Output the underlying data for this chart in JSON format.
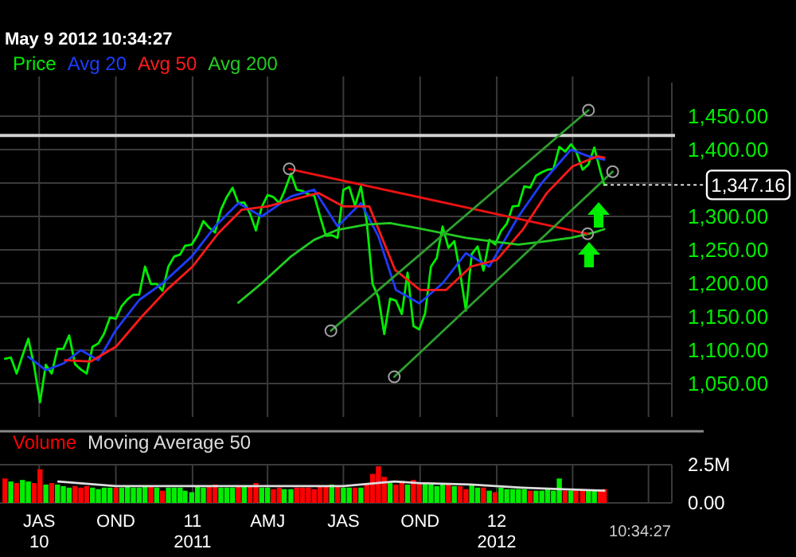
{
  "chart_data": [
    {
      "type": "line",
      "subtitle": "May 9 2012 10:34:27",
      "xlim": [
        "2010-05-15",
        "2012-07-29"
      ],
      "xticks": [
        {
          "value": "2010-07-01",
          "label": null
        },
        {
          "value": "2010-10-01",
          "label": null
        },
        {
          "value": "2011-01-01",
          "label": null
        },
        {
          "value": "2011-04-01",
          "label": null
        },
        {
          "value": "2011-07-01",
          "label": null
        },
        {
          "value": "2011-10-01",
          "label": null
        },
        {
          "value": "2012-01-01",
          "label": null
        },
        {
          "value": "2012-04-01",
          "label": null
        },
        {
          "value": "2012-07-01",
          "label": null
        }
      ],
      "ylim": [
        1000,
        1500
      ],
      "yticks": [
        {
          "value": 1050,
          "label": "1,050.00"
        },
        {
          "value": 1100,
          "label": "1,100.00"
        },
        {
          "value": 1150,
          "label": "1,150.00"
        },
        {
          "value": 1200,
          "label": "1,200.00"
        },
        {
          "value": 1250,
          "label": "1,250.00"
        },
        {
          "value": 1300,
          "label": "1,300.00"
        },
        {
          "value": 1350,
          "label": null
        },
        {
          "value": 1400,
          "label": "1,400.00"
        },
        {
          "value": 1450,
          "label": "1,450.00"
        }
      ],
      "grid": true,
      "legend": "top left",
      "tick_labels": "y",
      "ref_lines": [
        {
          "axis": "y",
          "value": 1421,
          "color": "#d0d0d0"
        }
      ],
      "annotations": [
        {
          "text": "1,347.16",
          "x": "2012-05-09",
          "y": 1347.16
        }
      ],
      "series": [
        {
          "name": "Price",
          "color": "#00ee00",
          "x": [
            "2010-05-21",
            "2010-05-28",
            "2010-06-04",
            "2010-06-11",
            "2010-06-18",
            "2010-06-25",
            "2010-07-02",
            "2010-07-09",
            "2010-07-16",
            "2010-07-23",
            "2010-07-30",
            "2010-08-06",
            "2010-08-13",
            "2010-08-20",
            "2010-08-27",
            "2010-09-03",
            "2010-09-10",
            "2010-09-17",
            "2010-09-24",
            "2010-10-01",
            "2010-10-08",
            "2010-10-15",
            "2010-10-22",
            "2010-10-29",
            "2010-11-05",
            "2010-11-12",
            "2010-11-19",
            "2010-11-26",
            "2010-12-03",
            "2010-12-10",
            "2010-12-17",
            "2010-12-23",
            "2010-12-31",
            "2011-01-07",
            "2011-01-14",
            "2011-01-21",
            "2011-01-28",
            "2011-02-04",
            "2011-02-11",
            "2011-02-18",
            "2011-02-25",
            "2011-03-04",
            "2011-03-11",
            "2011-03-18",
            "2011-03-25",
            "2011-04-01",
            "2011-04-08",
            "2011-04-15",
            "2011-04-21",
            "2011-04-29",
            "2011-05-06",
            "2011-05-13",
            "2011-05-20",
            "2011-05-27",
            "2011-06-03",
            "2011-06-10",
            "2011-06-17",
            "2011-06-24",
            "2011-07-01",
            "2011-07-08",
            "2011-07-15",
            "2011-07-22",
            "2011-07-29",
            "2011-08-05",
            "2011-08-12",
            "2011-08-19",
            "2011-08-26",
            "2011-09-02",
            "2011-09-09",
            "2011-09-16",
            "2011-09-23",
            "2011-09-30",
            "2011-10-07",
            "2011-10-14",
            "2011-10-21",
            "2011-10-28",
            "2011-11-04",
            "2011-11-11",
            "2011-11-18",
            "2011-11-25",
            "2011-12-02",
            "2011-12-09",
            "2011-12-16",
            "2011-12-23",
            "2011-12-30",
            "2012-01-06",
            "2012-01-13",
            "2012-01-20",
            "2012-01-27",
            "2012-02-03",
            "2012-02-10",
            "2012-02-17",
            "2012-02-24",
            "2012-03-02",
            "2012-03-09",
            "2012-03-16",
            "2012-03-23",
            "2012-03-30",
            "2012-04-05",
            "2012-04-13",
            "2012-04-20",
            "2012-04-27",
            "2012-05-04",
            "2012-05-09"
          ],
          "values": [
            1087,
            1089,
            1065,
            1092,
            1117,
            1076,
            1022,
            1078,
            1065,
            1102,
            1102,
            1122,
            1079,
            1071,
            1065,
            1105,
            1110,
            1125,
            1149,
            1147,
            1166,
            1176,
            1183,
            1183,
            1225,
            1199,
            1199,
            1189,
            1225,
            1240,
            1243,
            1256,
            1258,
            1272,
            1293,
            1283,
            1276,
            1310,
            1329,
            1343,
            1320,
            1321,
            1304,
            1279,
            1314,
            1332,
            1329,
            1320,
            1337,
            1364,
            1340,
            1338,
            1333,
            1331,
            1300,
            1271,
            1272,
            1268,
            1340,
            1344,
            1316,
            1345,
            1292,
            1199,
            1179,
            1124,
            1177,
            1174,
            1154,
            1216,
            1136,
            1131,
            1155,
            1225,
            1238,
            1285,
            1253,
            1263,
            1216,
            1159,
            1244,
            1255,
            1219,
            1265,
            1258,
            1278,
            1289,
            1315,
            1316,
            1345,
            1343,
            1361,
            1366,
            1370,
            1371,
            1404,
            1397,
            1408,
            1398,
            1370,
            1378,
            1403,
            1369,
            1347
          ]
        },
        {
          "name": "Avg 20",
          "color": "#1e3cff",
          "x": [
            "2010-06-18",
            "2010-07-09",
            "2010-07-30",
            "2010-08-20",
            "2010-09-10",
            "2010-10-01",
            "2010-10-29",
            "2010-11-26",
            "2010-12-31",
            "2011-01-28",
            "2011-02-25",
            "2011-03-25",
            "2011-04-29",
            "2011-05-27",
            "2011-06-24",
            "2011-07-22",
            "2011-08-12",
            "2011-09-02",
            "2011-09-30",
            "2011-10-28",
            "2011-11-25",
            "2011-12-23",
            "2012-01-27",
            "2012-02-24",
            "2012-03-30",
            "2012-04-20",
            "2012-05-09"
          ],
          "values": [
            1090,
            1070,
            1080,
            1100,
            1085,
            1130,
            1175,
            1200,
            1240,
            1285,
            1320,
            1300,
            1330,
            1340,
            1285,
            1320,
            1270,
            1190,
            1170,
            1200,
            1245,
            1225,
            1300,
            1350,
            1400,
            1390,
            1385
          ]
        },
        {
          "name": "Avg 50",
          "color": "#ff1a1a",
          "x": [
            "2010-08-01",
            "2010-09-01",
            "2010-10-01",
            "2010-11-01",
            "2010-12-01",
            "2011-01-01",
            "2011-02-01",
            "2011-03-01",
            "2011-04-01",
            "2011-05-01",
            "2011-06-01",
            "2011-07-01",
            "2011-08-01",
            "2011-09-01",
            "2011-10-01",
            "2011-11-01",
            "2011-12-01",
            "2012-01-01",
            "2012-02-01",
            "2012-03-01",
            "2012-04-01",
            "2012-05-01",
            "2012-05-09"
          ],
          "values": [
            1085,
            1083,
            1105,
            1150,
            1190,
            1225,
            1275,
            1310,
            1315,
            1325,
            1335,
            1315,
            1315,
            1220,
            1190,
            1190,
            1225,
            1235,
            1280,
            1335,
            1375,
            1390,
            1388
          ]
        },
        {
          "name": "Avg 200",
          "color": "#22cc22",
          "x": [
            "2011-02-25",
            "2011-03-25",
            "2011-04-29",
            "2011-05-27",
            "2011-06-24",
            "2011-07-29",
            "2011-08-26",
            "2011-09-30",
            "2011-10-28",
            "2011-11-25",
            "2011-12-30",
            "2012-01-27",
            "2012-02-24",
            "2012-03-30",
            "2012-04-27",
            "2012-05-09"
          ],
          "values": [
            1171,
            1200,
            1240,
            1265,
            1280,
            1288,
            1290,
            1282,
            1275,
            1268,
            1262,
            1258,
            1262,
            1268,
            1276,
            1281
          ]
        },
        {
          "color": "#ee1111",
          "marker": "circle",
          "x": [
            "2011-04-27",
            "2012-04-19"
          ],
          "values": [
            1371,
            1274
          ]
        },
        {
          "color": "#2e9e2e",
          "marker": "circle",
          "x": [
            "2011-06-16",
            "2012-04-20"
          ],
          "values": [
            1129,
            1459
          ]
        },
        {
          "color": "#2e9e2e",
          "marker": "circle",
          "x": [
            "2011-08-31",
            "2012-05-19"
          ],
          "values": [
            1060,
            1367
          ]
        }
      ]
    },
    {
      "type": "bar",
      "xlim": [
        "2010-05-15",
        "2012-07-29"
      ],
      "xticks": [
        {
          "value": "2010-07-01",
          "label": "JAS\n10"
        },
        {
          "value": "2010-10-01",
          "label": "OND"
        },
        {
          "value": "2011-01-01",
          "label": "11\n2011"
        },
        {
          "value": "2011-04-01",
          "label": "AMJ"
        },
        {
          "value": "2011-07-01",
          "label": "JAS"
        },
        {
          "value": "2011-10-01",
          "label": "OND"
        },
        {
          "value": "2012-01-01",
          "label": "12\n2012"
        },
        {
          "value": "2012-04-01",
          "label": null
        },
        {
          "value": "2012-07-01",
          "label": null
        }
      ],
      "ylim": [
        0,
        2.5
      ],
      "yticks": [
        {
          "value": 0,
          "label": "0.00"
        },
        {
          "value": 2.5,
          "label": "2.5M"
        }
      ],
      "grid": true,
      "legend": "top left",
      "annotations": [
        "10:34:27"
      ],
      "series": [
        {
          "name": "Volume",
          "color": "#ff0000",
          "x": [
            "2010-05-21",
            "2010-05-28",
            "2010-06-04",
            "2010-06-11",
            "2010-06-18",
            "2010-06-25",
            "2010-07-02",
            "2010-07-09",
            "2010-07-16",
            "2010-07-23",
            "2010-07-30",
            "2010-08-06",
            "2010-08-13",
            "2010-08-20",
            "2010-08-27",
            "2010-09-03",
            "2010-09-10",
            "2010-09-17",
            "2010-09-24",
            "2010-10-01",
            "2010-10-08",
            "2010-10-15",
            "2010-10-22",
            "2010-10-29",
            "2010-11-05",
            "2010-11-12",
            "2010-11-19",
            "2010-11-26",
            "2010-12-03",
            "2010-12-10",
            "2010-12-17",
            "2010-12-23",
            "2010-12-31",
            "2011-01-07",
            "2011-01-14",
            "2011-01-21",
            "2011-01-28",
            "2011-02-04",
            "2011-02-11",
            "2011-02-18",
            "2011-02-25",
            "2011-03-04",
            "2011-03-11",
            "2011-03-18",
            "2011-03-25",
            "2011-04-01",
            "2011-04-08",
            "2011-04-15",
            "2011-04-21",
            "2011-04-29",
            "2011-05-06",
            "2011-05-13",
            "2011-05-20",
            "2011-05-27",
            "2011-06-03",
            "2011-06-10",
            "2011-06-17",
            "2011-06-24",
            "2011-07-01",
            "2011-07-08",
            "2011-07-15",
            "2011-07-22",
            "2011-07-29",
            "2011-08-05",
            "2011-08-12",
            "2011-08-19",
            "2011-08-26",
            "2011-09-02",
            "2011-09-09",
            "2011-09-16",
            "2011-09-23",
            "2011-09-30",
            "2011-10-07",
            "2011-10-14",
            "2011-10-21",
            "2011-10-28",
            "2011-11-04",
            "2011-11-11",
            "2011-11-18",
            "2011-11-25",
            "2011-12-02",
            "2011-12-09",
            "2011-12-16",
            "2011-12-23",
            "2011-12-30",
            "2012-01-06",
            "2012-01-13",
            "2012-01-20",
            "2012-01-27",
            "2012-02-03",
            "2012-02-10",
            "2012-02-17",
            "2012-02-24",
            "2012-03-02",
            "2012-03-09",
            "2012-03-16",
            "2012-03-23",
            "2012-03-30",
            "2012-04-05",
            "2012-04-13",
            "2012-04-20",
            "2012-04-27",
            "2012-05-04",
            "2012-05-09"
          ],
          "values": [
            1.6,
            1.4,
            1.3,
            1.5,
            1.4,
            1.3,
            2.2,
            1.2,
            1.3,
            1.2,
            1.1,
            1.0,
            1.1,
            1.0,
            1.1,
            1.0,
            0.9,
            1.0,
            1.0,
            1.0,
            1.0,
            1.1,
            1.0,
            1.0,
            1.1,
            1.1,
            1.0,
            0.8,
            1.0,
            1.0,
            1.0,
            0.8,
            0.7,
            1.1,
            1.0,
            1.1,
            1.2,
            1.0,
            1.0,
            1.0,
            1.1,
            1.1,
            1.1,
            1.3,
            1.0,
            1.0,
            0.9,
            1.0,
            0.9,
            0.9,
            1.0,
            1.0,
            1.0,
            0.9,
            1.1,
            1.1,
            1.2,
            1.1,
            1.0,
            1.0,
            1.0,
            1.0,
            1.3,
            1.9,
            2.4,
            1.7,
            1.3,
            1.2,
            1.3,
            1.2,
            1.5,
            1.3,
            1.3,
            1.2,
            1.1,
            1.2,
            1.2,
            1.1,
            1.1,
            0.9,
            1.2,
            1.0,
            1.0,
            0.8,
            0.7,
            1.0,
            0.9,
            0.9,
            0.9,
            0.9,
            0.8,
            0.8,
            0.8,
            0.9,
            0.8,
            1.6,
            0.8,
            0.8,
            0.8,
            0.8,
            0.8,
            0.8,
            0.8,
            0.9
          ],
          "colors": [
            "#ff0000",
            "#00ee00",
            "#ff0000",
            "#00ee00",
            "#00ee00",
            "#ff0000",
            "#ff0000",
            "#00ee00",
            "#ff0000",
            "#00ee00",
            "#00ee00",
            "#00ee00",
            "#ff0000",
            "#ff0000",
            "#ff0000",
            "#00ee00",
            "#00ee00",
            "#00ee00",
            "#00ee00",
            "#ff0000",
            "#00ee00",
            "#00ee00",
            "#00ee00",
            "#00ee00",
            "#00ee00",
            "#ff0000",
            "#00ee00",
            "#ff0000",
            "#00ee00",
            "#00ee00",
            "#00ee00",
            "#00ee00",
            "#00ee00",
            "#00ee00",
            "#00ee00",
            "#ff0000",
            "#ff0000",
            "#00ee00",
            "#00ee00",
            "#00ee00",
            "#ff0000",
            "#00ee00",
            "#ff0000",
            "#ff0000",
            "#00ee00",
            "#00ee00",
            "#ff0000",
            "#ff0000",
            "#00ee00",
            "#00ee00",
            "#ff0000",
            "#ff0000",
            "#ff0000",
            "#ff0000",
            "#ff0000",
            "#ff0000",
            "#00ee00",
            "#ff0000",
            "#00ee00",
            "#00ee00",
            "#ff0000",
            "#00ee00",
            "#ff0000",
            "#ff0000",
            "#ff0000",
            "#ff0000",
            "#00ee00",
            "#ff0000",
            "#ff0000",
            "#00ee00",
            "#ff0000",
            "#ff0000",
            "#00ee00",
            "#00ee00",
            "#00ee00",
            "#00ee00",
            "#ff0000",
            "#00ee00",
            "#ff0000",
            "#ff0000",
            "#00ee00",
            "#00ee00",
            "#ff0000",
            "#00ee00",
            "#ff0000",
            "#00ee00",
            "#00ee00",
            "#00ee00",
            "#00ee00",
            "#00ee00",
            "#ff0000",
            "#00ee00",
            "#00ee00",
            "#00ee00",
            "#00ee00",
            "#00ee00",
            "#ff0000",
            "#00ee00",
            "#ff0000",
            "#ff0000",
            "#00ee00",
            "#00ee00",
            "#ff0000",
            "#ff0000"
          ]
        },
        {
          "name": "Moving Average 50",
          "type": "line",
          "color": "#dddddd",
          "x": [
            "2010-07-24",
            "2010-10-01",
            "2011-01-03",
            "2011-04-01",
            "2011-07-01",
            "2011-08-31",
            "2011-09-30",
            "2011-11-30",
            "2012-01-31",
            "2012-03-15",
            "2012-05-09"
          ],
          "values": [
            1.4,
            1.1,
            1.1,
            1.1,
            1.1,
            1.4,
            1.3,
            1.2,
            1.0,
            0.9,
            0.8
          ]
        }
      ]
    }
  ]
}
